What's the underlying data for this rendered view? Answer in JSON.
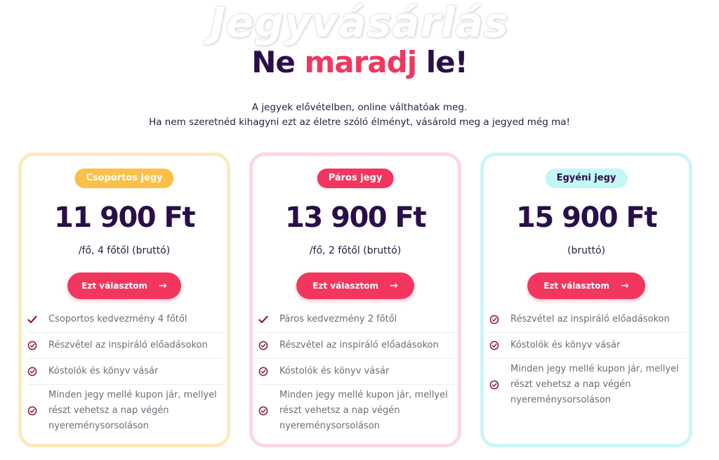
{
  "hero": {
    "watermark": "Jegyvásárlás",
    "headline_part1": "Ne ",
    "headline_accent": "maradj",
    "headline_part2": " le!",
    "intro_line1": "A jegyek elővételben, online válthatóak meg.",
    "intro_line2": "Ha nem szeretnéd kihagyni ezt az életre szóló élményt, vásárold meg a jegyed még ma!"
  },
  "colors": {
    "accent": "#f2365e",
    "dark": "#2a0e4a",
    "group_badge": "#fbc04a",
    "single_badge": "#c2f7f6"
  },
  "cards": [
    {
      "badge": "Csoportos jegy",
      "price": "11 900 Ft",
      "sub": "/fő, 4 főtől (bruttó)",
      "button": "Ezt választom",
      "features": [
        {
          "icon": "check-icon",
          "text": "Csoportos kedvezmény 4 főtől"
        },
        {
          "icon": "circle-check-icon",
          "text": "Részvétel az inspiráló előadásokon"
        },
        {
          "icon": "circle-check-icon",
          "text": "Kóstolók és könyv vásár"
        },
        {
          "icon": "circle-check-icon",
          "text": "Minden jegy mellé kupon jár, mellyel részt vehetsz a nap végén nyereménysorsoláson"
        }
      ]
    },
    {
      "badge": "Páros jegy",
      "price": "13 900 Ft",
      "sub": "/fő, 2 főtől (bruttó)",
      "button": "Ezt választom",
      "features": [
        {
          "icon": "check-icon",
          "text": "Páros kedvezmény 2 főtől"
        },
        {
          "icon": "circle-check-icon",
          "text": "Részvétel az inspiráló előadásokon"
        },
        {
          "icon": "circle-check-icon",
          "text": "Kóstolók és könyv vásár"
        },
        {
          "icon": "circle-check-icon",
          "text": "Minden jegy mellé kupon jár, mellyel részt vehetsz a nap végén nyereménysorsoláson"
        }
      ]
    },
    {
      "badge": "Egyéni jegy",
      "price": "15 900 Ft",
      "sub": "(bruttó)",
      "button": "Ezt választom",
      "features": [
        {
          "icon": "circle-check-icon",
          "text": "Részvétel az inspiráló előadásokon"
        },
        {
          "icon": "circle-check-icon",
          "text": "Kóstolók és könyv vásár"
        },
        {
          "icon": "circle-check-icon",
          "text": "Minden jegy mellé kupon jár, mellyel részt vehetsz a nap végén nyereménysorsoláson"
        }
      ]
    }
  ]
}
